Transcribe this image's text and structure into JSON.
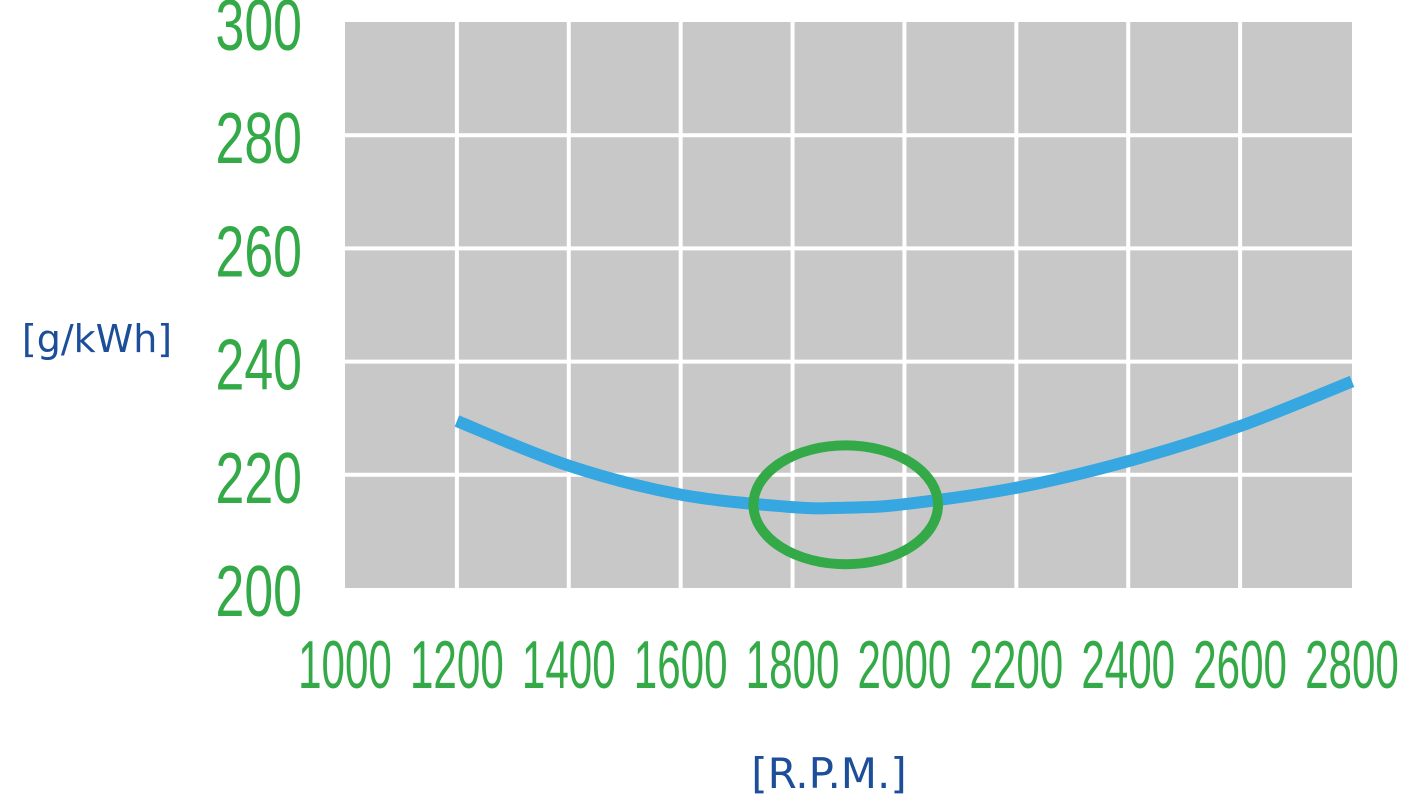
{
  "chart_data": {
    "type": "line",
    "xlabel": "[R.P.M.]",
    "ylabel": "[g/kWh]",
    "xlim": [
      1000,
      2800
    ],
    "ylim": [
      200,
      300
    ],
    "x_ticks": [
      "1000",
      "1200",
      "1400",
      "1600",
      "1800",
      "2000",
      "2200",
      "2400",
      "2600",
      "2800"
    ],
    "y_ticks": [
      "300",
      "280",
      "260",
      "240",
      "220",
      "200"
    ],
    "grid": true,
    "series": [
      {
        "x": [
          1200,
          1400,
          1600,
          1800,
          1900,
          2000,
          2200,
          2400,
          2600,
          2800
        ],
        "y": [
          229.5,
          221.6,
          216.5,
          214.3,
          214.2,
          214.8,
          217.7,
          222.4,
          228.6,
          236.5
        ]
      }
    ],
    "highlight": {
      "shape": "ellipse",
      "center_x": 1895,
      "center_y": 214.7,
      "x_radius": 165,
      "y_radius": 10.5
    },
    "colors": {
      "plot_background": "#c8c8c8",
      "grid": "#ffffff",
      "line": "#36a7e0",
      "tick_labels": "#33aa47",
      "axis_titles": "#1d4e9a",
      "highlight": "#33aa47"
    }
  }
}
